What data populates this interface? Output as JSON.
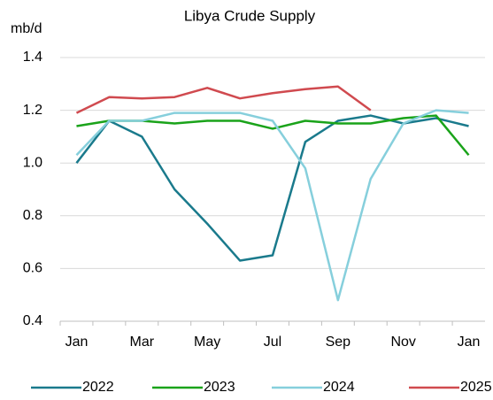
{
  "chart_data": {
    "type": "line",
    "title": "Libya Crude Supply",
    "y_label": "mb/d",
    "categories": [
      "Jan",
      null,
      "Mar",
      null,
      "May",
      null,
      "Jul",
      null,
      "Sep",
      null,
      "Nov",
      null,
      "Jan"
    ],
    "series": [
      {
        "name": "2022",
        "color": "#1a7a8c",
        "values": [
          1.0,
          1.16,
          1.1,
          0.9,
          0.77,
          0.63,
          0.65,
          1.08,
          1.16,
          1.18,
          1.15,
          1.17,
          1.14
        ]
      },
      {
        "name": "2023",
        "color": "#1aa31a",
        "values": [
          1.14,
          1.16,
          1.16,
          1.15,
          1.16,
          1.16,
          1.13,
          1.16,
          1.15,
          1.15,
          1.17,
          1.18,
          1.03
        ]
      },
      {
        "name": "2024",
        "color": "#86cfdc",
        "values": [
          1.03,
          1.16,
          1.16,
          1.19,
          1.19,
          1.19,
          1.16,
          0.98,
          0.48,
          0.94,
          1.15,
          1.2,
          1.19
        ]
      },
      {
        "name": "2025",
        "color": "#d04a4f",
        "values": [
          1.19,
          1.25,
          1.245,
          1.25,
          1.285,
          1.245,
          1.265,
          1.28,
          1.29,
          1.2,
          null,
          null,
          null
        ]
      }
    ],
    "ylim": [
      0.4,
      1.4
    ],
    "yticks": [
      {
        "value": 0.4,
        "label": "0.4"
      },
      {
        "value": 0.6,
        "label": "0.6"
      },
      {
        "value": 0.8,
        "label": "0.8"
      },
      {
        "value": 1.0,
        "label": "1.0"
      },
      {
        "value": 1.2,
        "label": "1.2"
      },
      {
        "value": 1.4,
        "label": "1.4"
      }
    ],
    "grid": true,
    "legend": "bottom"
  }
}
